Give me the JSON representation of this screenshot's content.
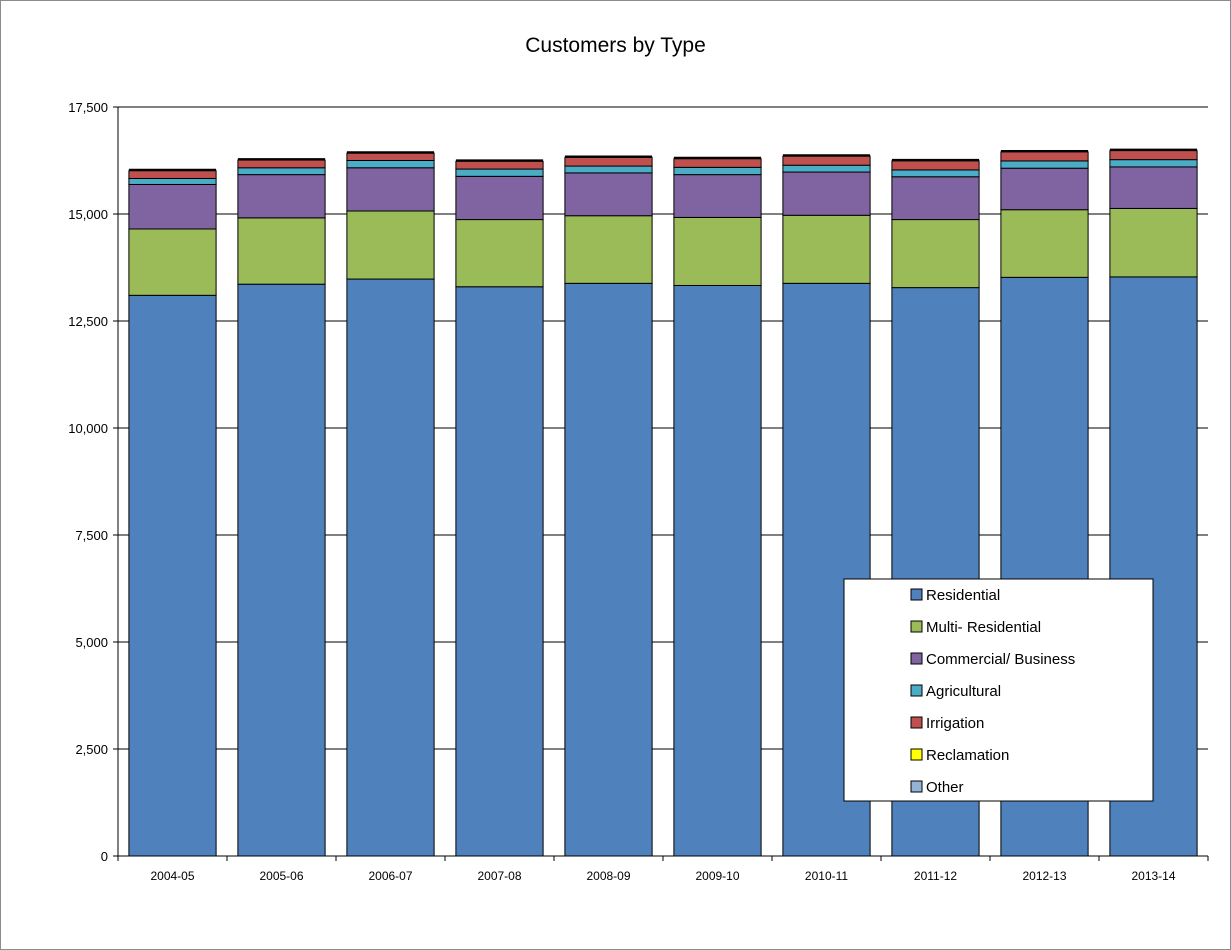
{
  "chart_data": {
    "type": "bar",
    "stacked": true,
    "title": "Customers by Type",
    "xlabel": "",
    "ylabel": "",
    "ylim": [
      0,
      17500
    ],
    "yticks": [
      0,
      2500,
      5000,
      7500,
      10000,
      12500,
      15000,
      17500
    ],
    "ytick_labels": [
      "0",
      "2,500",
      "5,000",
      "7,500",
      "10,000",
      "12,500",
      "15,000",
      "17,500"
    ],
    "grid": true,
    "legend_position": "bottom-right",
    "categories": [
      "2004-05",
      "2005-06",
      "2006-07",
      "2007-08",
      "2008-09",
      "2009-10",
      "2010-11",
      "2011-12",
      "2012-13",
      "2013-14"
    ],
    "series": [
      {
        "name": "Residential",
        "color": "#4f81bd",
        "values": [
          13100,
          13360,
          13480,
          13300,
          13380,
          13330,
          13380,
          13280,
          13520,
          13530
        ]
      },
      {
        "name": "Multi- Residential",
        "color": "#9bbb59",
        "values": [
          1550,
          1550,
          1590,
          1570,
          1580,
          1590,
          1590,
          1590,
          1580,
          1600
        ]
      },
      {
        "name": "Commercial/ Business",
        "color": "#8064a2",
        "values": [
          1040,
          1010,
          1010,
          1010,
          1000,
          1000,
          1010,
          1000,
          970,
          970
        ]
      },
      {
        "name": "Agricultural",
        "color": "#4bacc6",
        "values": [
          140,
          160,
          170,
          170,
          160,
          170,
          160,
          160,
          170,
          170
        ]
      },
      {
        "name": "Irrigation",
        "color": "#c0504d",
        "values": [
          180,
          180,
          170,
          180,
          200,
          200,
          210,
          210,
          210,
          210
        ]
      },
      {
        "name": "Reclamation",
        "color": "#ffff00",
        "values": [
          0,
          0,
          0,
          0,
          0,
          0,
          0,
          0,
          0,
          0
        ]
      },
      {
        "name": "Other",
        "color": "#95b3d7",
        "values": [
          0,
          0,
          0,
          0,
          0,
          0,
          0,
          0,
          0,
          0
        ]
      }
    ]
  }
}
